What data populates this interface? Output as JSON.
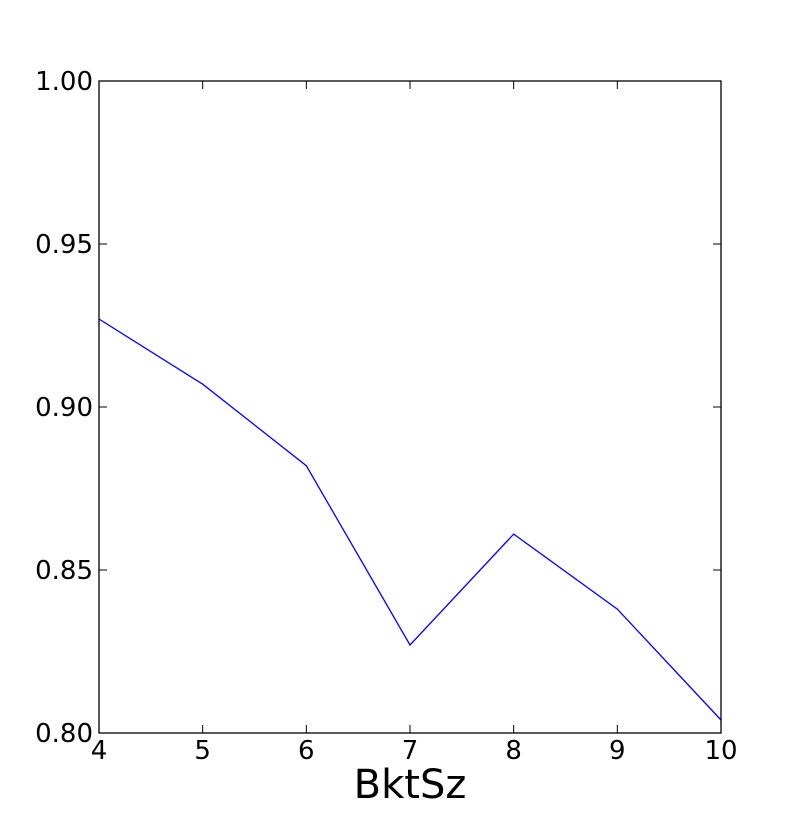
{
  "chart_data": {
    "type": "line",
    "title": "",
    "xlabel": "BktSz",
    "ylabel": "",
    "xlim": [
      4,
      10
    ],
    "ylim": [
      0.8,
      1.0
    ],
    "x_ticks": [
      "4",
      "5",
      "6",
      "7",
      "8",
      "9",
      "10"
    ],
    "y_ticks": [
      "0.80",
      "0.85",
      "0.90",
      "0.95",
      "1.00"
    ],
    "grid": false,
    "legend": "none",
    "series": [
      {
        "color": "#0000ff",
        "x": [
          4,
          5,
          6,
          7,
          8,
          9,
          10
        ],
        "y": [
          0.927,
          0.907,
          0.882,
          0.827,
          0.861,
          0.838,
          0.804
        ]
      }
    ]
  }
}
